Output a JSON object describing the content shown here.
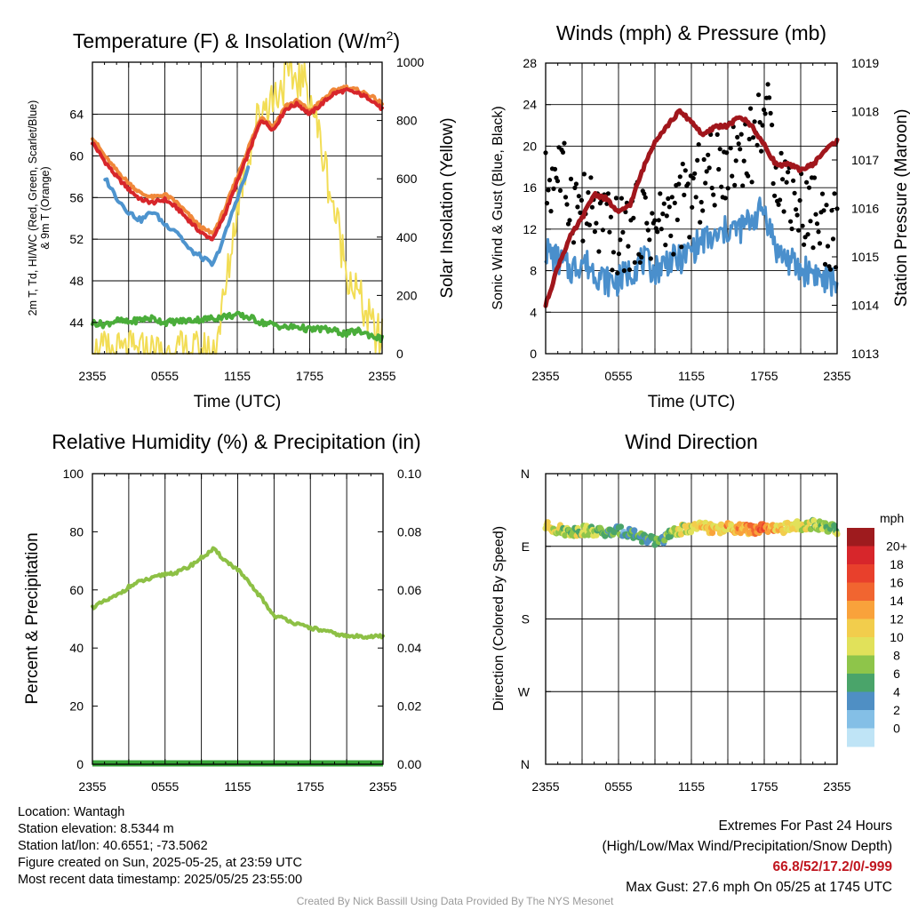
{
  "panels": {
    "temperature": {
      "title": "Temperature (F) & Insolation (W/m²)",
      "xlabel": "Time (UTC)",
      "ylabel_left_line1": "2m T, Td, HI/WC (Red, Green, Scarlet/Blue)",
      "ylabel_left_line2": "& 9m T (Orange)",
      "ylabel_right": "Solar Insolation (Yellow)"
    },
    "winds": {
      "title": "Winds (mph) & Pressure (mb)",
      "xlabel": "Time (UTC)",
      "ylabel_left": "Sonic Wind & Gust (Blue, Black)",
      "ylabel_right": "Station Pressure (Maroon)"
    },
    "humidity": {
      "title": "Relative Humidity (%) & Precipitation (in)",
      "ylabel_left": "Percent & Precipitation"
    },
    "direction": {
      "title": "Wind Direction",
      "ylabel_left": "Direction (Colored By Speed)",
      "legend_unit": "mph",
      "legend_labels": [
        "20+",
        "18",
        "16",
        "14",
        "12",
        "10",
        "8",
        "6",
        "4",
        "2",
        "0"
      ],
      "legend_colors": [
        "#9e1b1e",
        "#d7262b",
        "#e8402c",
        "#f16530",
        "#f9a23b",
        "#f2cd4c",
        "#e1e15a",
        "#8ec54a",
        "#4aa46a",
        "#4f8fc4",
        "#84bfe6",
        "#bfe4f6"
      ]
    }
  },
  "footer": {
    "location": "Location: Wantagh",
    "elevation": "Station elevation: 8.5344 m",
    "latlon": "Station lat/lon: 40.6551; -73.5062",
    "created": "Figure created on Sun, 2025-05-25, at 23:59 UTC",
    "latest": "Most recent data timestamp: 2025/05/25 23:55:00",
    "extremes_title": "Extremes For Past 24 Hours",
    "extremes_legend": "(High/Low/Max Wind/Precipitation/Snow Depth)",
    "extremes_values": "66.8/52/17.2/0/-999",
    "max_gust": "Max Gust: 27.6 mph On 05/25 at 1745 UTC",
    "credit": "Created By Nick Bassill Using Data Provided By The NYS Mesonet"
  },
  "chart_data": [
    {
      "type": "line",
      "title": "Temperature (F) & Insolation (W/m²)",
      "xlabel": "Time (UTC)",
      "x_ticks": [
        "2355",
        "0555",
        "1155",
        "1755",
        "2355"
      ],
      "x": [
        0,
        1,
        2,
        3,
        4,
        5,
        6,
        7,
        8,
        9,
        10,
        11,
        12,
        13,
        14,
        15,
        16,
        17,
        18,
        19,
        20,
        21,
        22,
        23,
        24
      ],
      "ylim_left": [
        41,
        69
      ],
      "y_ticks_left": [
        44,
        48,
        52,
        56,
        60,
        64
      ],
      "ylim_right": [
        0,
        1000
      ],
      "y_ticks_right": [
        0,
        200,
        400,
        600,
        800,
        1000
      ],
      "series": [
        {
          "name": "2m T",
          "color": "#d7262b",
          "values": [
            61.3,
            59.5,
            58.0,
            56.8,
            55.8,
            55.5,
            55.8,
            55.0,
            53.8,
            52.6,
            52.0,
            54.5,
            57.5,
            60.5,
            63.5,
            62.5,
            64.5,
            65.0,
            64.0,
            65.0,
            66.0,
            66.3,
            66.0,
            65.5,
            64.5
          ]
        },
        {
          "name": "9m T",
          "color": "#f0883a",
          "values": [
            61.8,
            60.0,
            58.6,
            57.4,
            56.4,
            56.0,
            56.3,
            55.5,
            54.3,
            53.1,
            52.5,
            55.0,
            58.0,
            61.0,
            63.8,
            62.8,
            64.8,
            65.3,
            64.3,
            65.3,
            66.3,
            66.6,
            66.3,
            65.8,
            65.0
          ]
        },
        {
          "name": "HI/WC",
          "color": "#4e94ce",
          "values": [
            null,
            58.0,
            56.0,
            54.6,
            53.8,
            54.7,
            53.4,
            52.8,
            51.0,
            50.3,
            49.5,
            52.5,
            56.0,
            59.0,
            null,
            null,
            null,
            null,
            null,
            null,
            null,
            null,
            null,
            null,
            null
          ]
        },
        {
          "name": "Td",
          "color": "#4aad3a",
          "values": [
            44.0,
            43.8,
            44.2,
            44.0,
            44.3,
            44.4,
            44.0,
            44.1,
            44.2,
            44.3,
            44.4,
            44.6,
            44.7,
            44.5,
            44.0,
            43.8,
            43.5,
            43.6,
            43.3,
            43.4,
            43.2,
            42.9,
            43.2,
            42.8,
            42.4
          ]
        },
        {
          "name": "Solar Insolation",
          "color": "#f2dd55",
          "axis": "right",
          "values": [
            0,
            0,
            0,
            0,
            0,
            0,
            0,
            0,
            0,
            0,
            0,
            200,
            520,
            700,
            850,
            880,
            940,
            950,
            900,
            700,
            500,
            300,
            200,
            100,
            40
          ]
        }
      ]
    },
    {
      "type": "line",
      "title": "Winds (mph) & Pressure (mb)",
      "xlabel": "Time (UTC)",
      "x_ticks": [
        "2355",
        "0555",
        "1155",
        "1755",
        "2355"
      ],
      "x": [
        0,
        1,
        2,
        3,
        4,
        5,
        6,
        7,
        8,
        9,
        10,
        11,
        12,
        13,
        14,
        15,
        16,
        17,
        18,
        19,
        20,
        21,
        22,
        23,
        24
      ],
      "ylim_left": [
        0,
        28
      ],
      "y_ticks_left": [
        0,
        4,
        8,
        12,
        16,
        20,
        24,
        28
      ],
      "ylim_right": [
        1013,
        1019
      ],
      "y_ticks_right": [
        1013,
        1014,
        1015,
        1016,
        1017,
        1018,
        1019
      ],
      "series": [
        {
          "name": "Sonic Wind",
          "color": "#4a8fcc",
          "values": [
            10,
            9,
            8,
            9,
            8,
            7,
            7,
            8,
            9,
            8,
            9,
            9,
            10,
            11,
            11,
            12,
            12,
            13,
            14,
            10,
            9,
            8,
            8,
            7,
            7
          ]
        },
        {
          "name": "Gust",
          "color": "#000000",
          "values": [
            16,
            18,
            15,
            14,
            13,
            12,
            11,
            12,
            13,
            12,
            13,
            14,
            15,
            17,
            18,
            19,
            20,
            20,
            24,
            18,
            16,
            14,
            14,
            12,
            12
          ]
        },
        {
          "name": "Station Pressure",
          "color": "#a1161c",
          "axis": "right",
          "values": [
            1014.0,
            1014.8,
            1015.4,
            1015.8,
            1016.3,
            1016.2,
            1015.9,
            1016.1,
            1016.8,
            1017.4,
            1017.7,
            1018.0,
            1017.8,
            1017.5,
            1017.7,
            1017.7,
            1017.9,
            1017.7,
            1017.3,
            1016.9,
            1016.9,
            1016.8,
            1016.9,
            1017.2,
            1017.4
          ]
        }
      ]
    },
    {
      "type": "line",
      "title": "Relative Humidity (%) & Precipitation (in)",
      "x_ticks": [
        "2355",
        "0555",
        "1155",
        "1755",
        "2355"
      ],
      "x": [
        0,
        1,
        2,
        3,
        4,
        5,
        6,
        7,
        8,
        9,
        10,
        11,
        12,
        13,
        14,
        15,
        16,
        17,
        18,
        19,
        20,
        21,
        22,
        23,
        24
      ],
      "ylim_left": [
        0,
        100
      ],
      "y_ticks_left": [
        0,
        20,
        40,
        60,
        80,
        100
      ],
      "ylim_right": [
        0,
        0.1
      ],
      "y_ticks_right": [
        "0.00",
        "0.02",
        "0.04",
        "0.06",
        "0.08",
        "0.10"
      ],
      "series": [
        {
          "name": "Relative Humidity",
          "color": "#8dc045",
          "values": [
            54,
            56,
            58,
            61,
            63,
            64,
            65.5,
            66,
            68,
            71,
            74,
            70,
            67,
            62,
            57,
            51,
            50,
            48,
            47,
            46,
            45,
            44,
            44,
            44,
            44
          ]
        },
        {
          "name": "Precipitation",
          "color": "#3aa63a",
          "axis": "right",
          "values": [
            0,
            0,
            0,
            0,
            0,
            0,
            0,
            0,
            0,
            0,
            0,
            0,
            0,
            0,
            0,
            0,
            0,
            0,
            0,
            0,
            0,
            0,
            0,
            0,
            0
          ]
        }
      ]
    },
    {
      "type": "scatter",
      "title": "Wind Direction",
      "x_ticks": [
        "2355",
        "0555",
        "1155",
        "1755",
        "2355"
      ],
      "y_ticks": [
        "N",
        "W",
        "S",
        "E",
        "N"
      ],
      "ylim": [
        0,
        360
      ],
      "x": [
        0,
        1,
        2,
        3,
        4,
        5,
        6,
        7,
        8,
        9,
        10,
        11,
        12,
        13,
        14,
        15,
        16,
        17,
        18,
        19,
        20,
        21,
        22,
        23,
        24
      ],
      "direction_deg": [
        295,
        291,
        288,
        290,
        289,
        286,
        289,
        287,
        281,
        275,
        282,
        290,
        293,
        294,
        291,
        293,
        292,
        290,
        292,
        290,
        294,
        296,
        297,
        293,
        291
      ],
      "speed_mph": [
        10,
        9,
        8,
        9,
        8,
        6,
        5,
        6,
        6,
        6,
        7,
        9,
        10,
        12,
        11,
        13,
        13,
        15,
        16,
        12,
        11,
        10,
        9,
        8,
        8
      ]
    }
  ]
}
